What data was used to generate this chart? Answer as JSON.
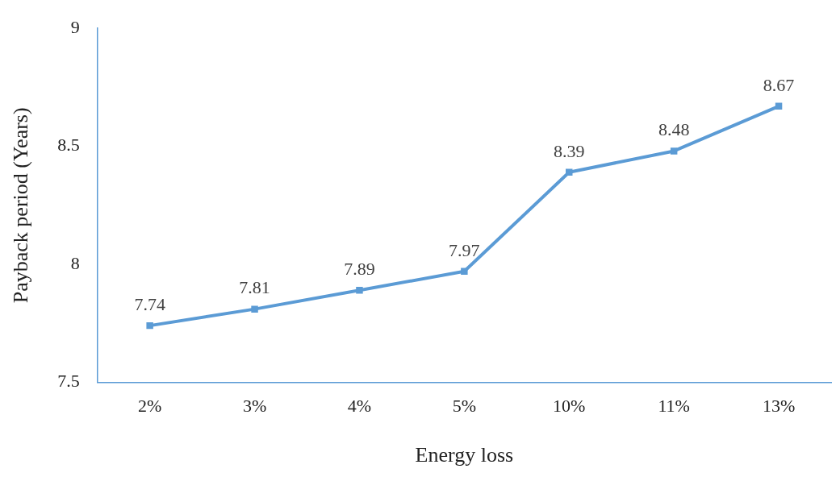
{
  "chart_data": {
    "type": "line",
    "xlabel": "Energy loss",
    "ylabel": "Payback period (Years)",
    "categories": [
      "2%",
      "3%",
      "4%",
      "5%",
      "10%",
      "11%",
      "13%"
    ],
    "series": [
      {
        "color": "#5b9bd5",
        "values": [
          7.74,
          7.81,
          7.89,
          7.97,
          8.39,
          8.48,
          8.67
        ]
      }
    ],
    "ylim": [
      7.5,
      9
    ],
    "yticks": [
      7.5,
      8,
      8.5,
      9
    ],
    "grid": false,
    "legend": false,
    "marker": "square",
    "line_style": "solid",
    "data_labels": true
  }
}
